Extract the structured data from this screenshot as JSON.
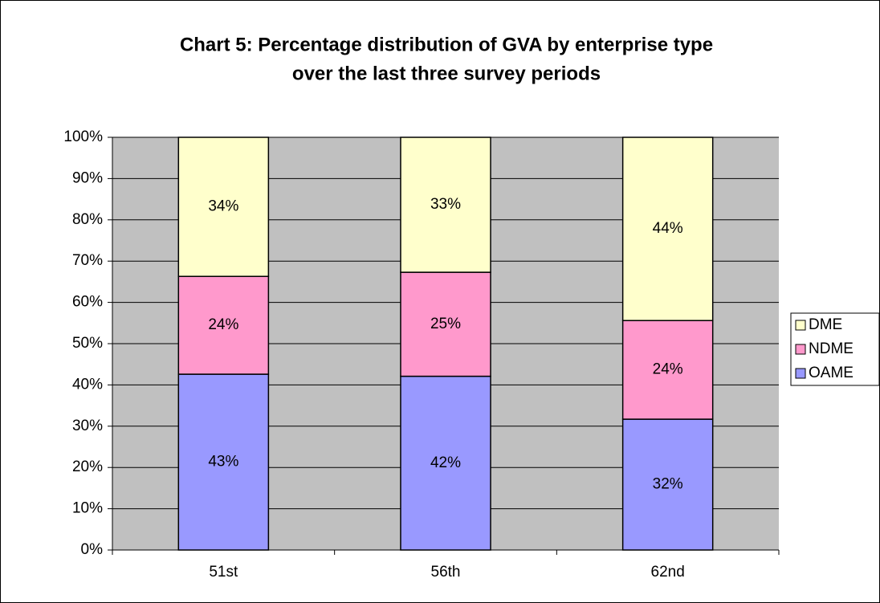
{
  "chart_data": {
    "type": "stacked_bar",
    "title": [
      "Chart 5: Percentage distribution of GVA by enterprise type",
      "over the last three survey periods"
    ],
    "categories": [
      "51st",
      "56th",
      "62nd"
    ],
    "series": [
      {
        "name": "OAME",
        "color": "#9999ff",
        "values": [
          42.6,
          42.1,
          31.7
        ],
        "value_labels": [
          "43%",
          "42%",
          "32%"
        ]
      },
      {
        "name": "NDME",
        "color": "#ff99cc",
        "values": [
          23.7,
          25.2,
          23.9
        ],
        "value_labels": [
          "24%",
          "25%",
          "24%"
        ]
      },
      {
        "name": "DME",
        "color": "#ffffcc",
        "values": [
          33.7,
          32.7,
          44.4
        ],
        "value_labels": [
          "34%",
          "33%",
          "44%"
        ]
      }
    ],
    "ylim": [
      0,
      100
    ],
    "yticks": [
      {
        "value": 0,
        "label": "0%"
      },
      {
        "value": 10,
        "label": "10%"
      },
      {
        "value": 20,
        "label": "20%"
      },
      {
        "value": 30,
        "label": "30%"
      },
      {
        "value": 40,
        "label": "40%"
      },
      {
        "value": 50,
        "label": "50%"
      },
      {
        "value": 60,
        "label": "60%"
      },
      {
        "value": 70,
        "label": "70%"
      },
      {
        "value": 80,
        "label": "80%"
      },
      {
        "value": 90,
        "label": "90%"
      },
      {
        "value": 100,
        "label": "100%"
      }
    ],
    "grid": true,
    "plot_background": "#c0c0c0",
    "legend": "right"
  }
}
